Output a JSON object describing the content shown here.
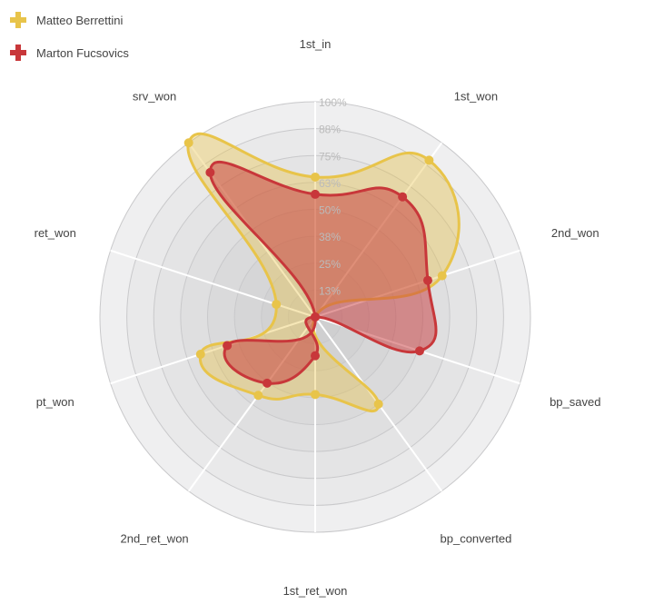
{
  "chart_data": {
    "type": "radar",
    "axes": [
      "1st_in",
      "1st_won",
      "2nd_won",
      "bp_saved",
      "bp_converted",
      "1st_ret_won",
      "2nd_ret_won",
      "pt_won",
      "ret_won",
      "srv_won"
    ],
    "ticks": [
      "13%",
      "25%",
      "38%",
      "50%",
      "63%",
      "75%",
      "88%",
      "100%"
    ],
    "range": [
      0,
      100
    ],
    "legend_position": "top-left",
    "series": [
      {
        "name": "Matteo Berrettini",
        "color": "#e8c44a",
        "values": [
          65,
          90,
          62,
          0,
          50,
          36,
          45,
          56,
          19,
          100
        ]
      },
      {
        "name": "Marton Fucsovics",
        "color": "#c8373a",
        "values": [
          57,
          69,
          55,
          51,
          0,
          18,
          38,
          43,
          0,
          83
        ]
      }
    ]
  }
}
